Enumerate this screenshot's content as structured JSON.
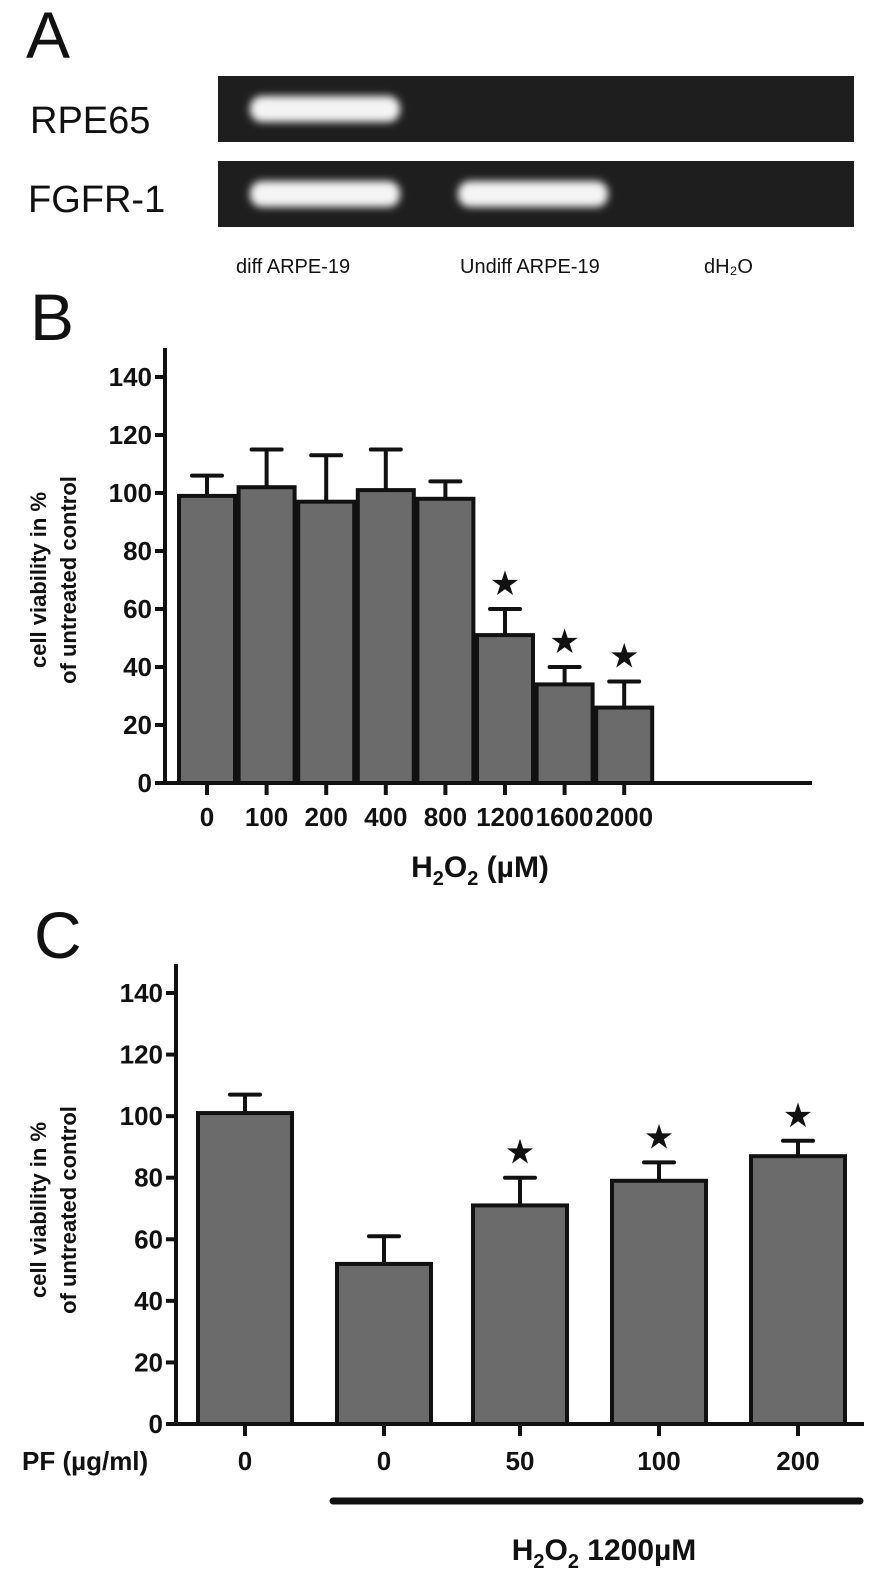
{
  "panel_a": {
    "letter": "A",
    "rows": [
      "RPE65",
      "FGFR-1"
    ],
    "lanes": [
      "diff ARPE-19",
      "Undiff ARPE-19",
      "dH₂O"
    ],
    "bands": [
      [
        true,
        false,
        false
      ],
      [
        true,
        true,
        false
      ]
    ]
  },
  "chart_data": [
    {
      "panel": "B",
      "type": "bar",
      "title": "",
      "xlabel": "H2O2 (µM)",
      "ylabel": [
        "cell viability in %",
        "of untreated control"
      ],
      "categories": [
        "0",
        "100",
        "200",
        "400",
        "800",
        "1200",
        "1600",
        "2000"
      ],
      "values": [
        99,
        102,
        97,
        101,
        98,
        51,
        34,
        26
      ],
      "error_upper": [
        106,
        115,
        113,
        115,
        104,
        60,
        40,
        35
      ],
      "significant": [
        false,
        false,
        false,
        false,
        false,
        true,
        true,
        true
      ],
      "ylim": [
        0,
        150
      ],
      "yticks": [
        0,
        20,
        40,
        60,
        80,
        100,
        120,
        140
      ],
      "grid": false,
      "bar_color": "#6b6b6b"
    },
    {
      "panel": "C",
      "type": "bar",
      "title": "",
      "x_row_label": "PF (µg/ml)",
      "xlabel": "H2O2 1200µM",
      "ylabel": [
        "cell viability in %",
        "of untreated control"
      ],
      "categories": [
        "0",
        "0",
        "50",
        "100",
        "200"
      ],
      "values": [
        101,
        52,
        71,
        79,
        87
      ],
      "error_upper": [
        107,
        61,
        80,
        85,
        92
      ],
      "significant": [
        false,
        false,
        true,
        true,
        true
      ],
      "h2o2_treated": [
        false,
        true,
        true,
        true,
        true
      ],
      "ylim": [
        0,
        150
      ],
      "yticks": [
        0,
        20,
        40,
        60,
        80,
        100,
        120,
        140
      ],
      "grid": false,
      "bar_color": "#6b6b6b"
    }
  ],
  "labels": {
    "b_letter": "B",
    "c_letter": "C",
    "xlab_b_main": "H",
    "xlab_b_sub1": "2",
    "xlab_b_mid": "O",
    "xlab_b_sub2": "2",
    "xlab_b_tail": " (µM)",
    "xlab_c_main": "H",
    "xlab_c_sub1": "2",
    "xlab_c_mid": "O",
    "xlab_c_sub2": "2",
    "xlab_c_tail": " 1200µM",
    "star": "★"
  }
}
